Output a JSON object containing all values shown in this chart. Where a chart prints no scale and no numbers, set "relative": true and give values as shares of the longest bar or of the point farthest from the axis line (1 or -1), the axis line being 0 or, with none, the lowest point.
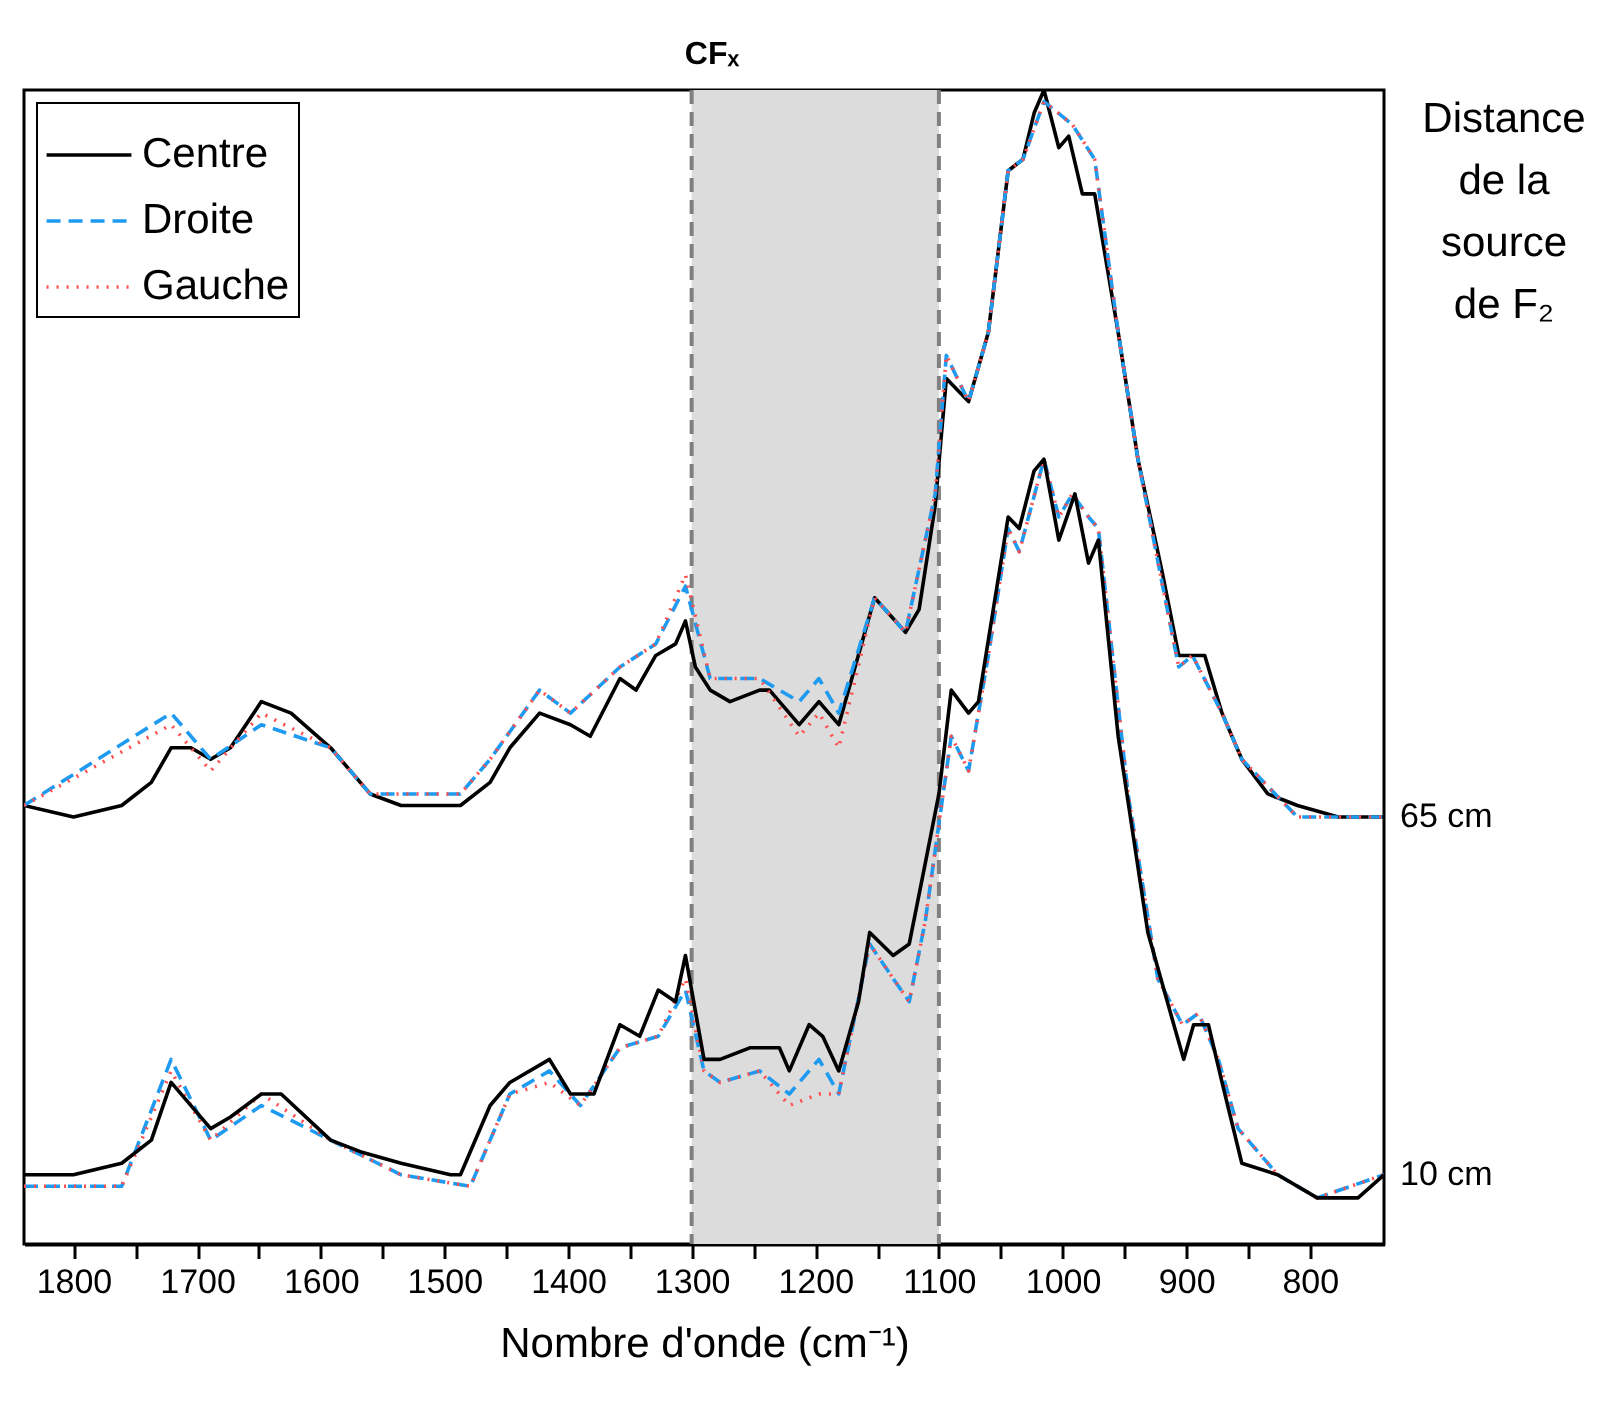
{
  "chart_data": {
    "type": "line",
    "title": "CFₓ",
    "xlabel": "Nombre d'onde (cm⁻¹)",
    "relative": true,
    "xlim": [
      1840,
      740
    ],
    "xticks": [
      1800,
      {
        "value": 1750,
        "label": null
      },
      1700,
      {
        "value": 1650,
        "label": null
      },
      1600,
      {
        "value": 1550,
        "label": null
      },
      1500,
      {
        "value": 1450,
        "label": null
      },
      1400,
      {
        "value": 1350,
        "label": null
      },
      1300,
      {
        "value": 1250,
        "label": null
      },
      1200,
      {
        "value": 1150,
        "label": null
      },
      1100,
      {
        "value": 1050,
        "label": null
      },
      1000,
      {
        "value": 950,
        "label": null
      },
      900,
      {
        "value": 850,
        "label": null
      },
      800
    ],
    "legend": "top left",
    "bands": [
      {
        "axis": "x",
        "from": 1300,
        "to": 1100,
        "color": "#dcdcdc"
      }
    ],
    "ref_lines": [
      {
        "axis": "x",
        "value": 1300,
        "color": "#808080",
        "line_style": "dashed"
      },
      {
        "axis": "x",
        "value": 1100,
        "color": "#808080",
        "line_style": "dashed"
      }
    ],
    "annotations": [
      "Distance de la source de F₂",
      {
        "text": "65 cm",
        "x": 740,
        "y": 0.37
      },
      {
        "text": "10 cm",
        "x": 740,
        "y": 0.06
      }
    ],
    "series": [
      {
        "name": "Centre",
        "color": "#000000",
        "line_style": "solid",
        "x": [
          1840,
          1800,
          1761,
          1737,
          1721,
          1705,
          1689,
          1673,
          1648,
          1624,
          1592,
          1560,
          1535,
          1511,
          1487,
          1463,
          1447,
          1423,
          1398,
          1382,
          1358,
          1345,
          1329,
          1313,
          1305,
          1297,
          1285,
          1269,
          1245,
          1237,
          1213,
          1197,
          1181,
          1152,
          1127,
          1116,
          1103,
          1094,
          1076,
          1060,
          1044,
          1032,
          1023,
          1015,
          1003,
          995,
          984,
          974,
          955,
          939,
          919,
          906,
          895,
          885,
          871,
          855,
          834,
          810,
          777,
          740
        ],
        "values": [
          0.38,
          0.37,
          0.38,
          0.4,
          0.43,
          0.43,
          0.42,
          0.43,
          0.47,
          0.46,
          0.43,
          0.39,
          0.38,
          0.38,
          0.38,
          0.4,
          0.43,
          0.46,
          0.45,
          0.44,
          0.49,
          0.48,
          0.51,
          0.52,
          0.54,
          0.5,
          0.48,
          0.47,
          0.48,
          0.48,
          0.45,
          0.47,
          0.45,
          0.56,
          0.53,
          0.55,
          0.64,
          0.75,
          0.73,
          0.79,
          0.93,
          0.94,
          0.98,
          1.0,
          0.95,
          0.96,
          0.91,
          0.91,
          0.79,
          0.68,
          0.58,
          0.51,
          0.51,
          0.51,
          0.46,
          0.42,
          0.39,
          0.38,
          0.37,
          0.37
        ]
      },
      {
        "name": "Droite",
        "color": "#1e9bf0",
        "line_style": "dashed",
        "x": [
          1840,
          1721,
          1689,
          1648,
          1592,
          1560,
          1487,
          1463,
          1423,
          1398,
          1358,
          1329,
          1305,
          1285,
          1245,
          1213,
          1197,
          1181,
          1152,
          1127,
          1103,
          1094,
          1076,
          1060,
          1044,
          1032,
          1015,
          992,
          974,
          955,
          939,
          919,
          906,
          895,
          871,
          855,
          810,
          740
        ],
        "values": [
          0.38,
          0.46,
          0.42,
          0.45,
          0.43,
          0.39,
          0.39,
          0.42,
          0.48,
          0.46,
          0.5,
          0.52,
          0.57,
          0.49,
          0.49,
          0.47,
          0.49,
          0.46,
          0.56,
          0.53,
          0.65,
          0.77,
          0.73,
          0.79,
          0.93,
          0.94,
          0.99,
          0.97,
          0.94,
          0.79,
          0.68,
          0.57,
          0.5,
          0.51,
          0.46,
          0.42,
          0.37,
          0.37
        ]
      },
      {
        "name": "Gauche",
        "color": "#ff4d4d",
        "line_style": "dotted",
        "x": [
          1840,
          1721,
          1689,
          1648,
          1592,
          1560,
          1487,
          1463,
          1423,
          1398,
          1358,
          1329,
          1305,
          1285,
          1245,
          1213,
          1197,
          1181,
          1152,
          1127,
          1103,
          1094,
          1076,
          1060,
          1044,
          1032,
          1015,
          992,
          974,
          955,
          939,
          919,
          906,
          895,
          871,
          855,
          810,
          740
        ],
        "values": [
          0.38,
          0.45,
          0.41,
          0.46,
          0.43,
          0.39,
          0.39,
          0.42,
          0.48,
          0.46,
          0.5,
          0.52,
          0.58,
          0.49,
          0.49,
          0.44,
          0.46,
          0.43,
          0.56,
          0.53,
          0.65,
          0.77,
          0.73,
          0.79,
          0.93,
          0.94,
          0.99,
          0.97,
          0.94,
          0.79,
          0.68,
          0.57,
          0.5,
          0.51,
          0.46,
          0.42,
          0.37,
          0.37
        ]
      },
      {
        "color": "#1e9bf0",
        "line_style": "dashed",
        "x": [
          1840,
          1761,
          1721,
          1689,
          1648,
          1592,
          1535,
          1479,
          1463,
          1447,
          1415,
          1390,
          1358,
          1327,
          1305,
          1290,
          1277,
          1245,
          1221,
          1197,
          1181,
          1156,
          1137,
          1124,
          1111,
          1090,
          1076,
          1060,
          1044,
          1035,
          1015,
          1003,
          992,
          979,
          971,
          947,
          923,
          903,
          890,
          874,
          858,
          826,
          794,
          740
        ],
        "values": [
          0.05,
          0.05,
          0.16,
          0.09,
          0.12,
          0.09,
          0.06,
          0.05,
          0.09,
          0.13,
          0.15,
          0.12,
          0.17,
          0.18,
          0.22,
          0.15,
          0.14,
          0.15,
          0.13,
          0.16,
          0.13,
          0.26,
          0.23,
          0.21,
          0.28,
          0.44,
          0.41,
          0.51,
          0.62,
          0.6,
          0.68,
          0.63,
          0.65,
          0.63,
          0.62,
          0.39,
          0.23,
          0.19,
          0.2,
          0.16,
          0.1,
          0.06,
          0.04,
          0.06
        ]
      },
      {
        "color": "#ff4d4d",
        "line_style": "dotted",
        "x": [
          1840,
          1761,
          1721,
          1689,
          1648,
          1592,
          1535,
          1479,
          1463,
          1447,
          1415,
          1390,
          1358,
          1327,
          1305,
          1290,
          1277,
          1245,
          1221,
          1197,
          1181,
          1156,
          1137,
          1124,
          1111,
          1090,
          1076,
          1060,
          1044,
          1035,
          1015,
          1003,
          992,
          979,
          971,
          947,
          923,
          903,
          890,
          874,
          858,
          826,
          794,
          740
        ],
        "values": [
          0.05,
          0.05,
          0.15,
          0.09,
          0.13,
          0.09,
          0.06,
          0.05,
          0.09,
          0.13,
          0.14,
          0.12,
          0.17,
          0.18,
          0.23,
          0.15,
          0.14,
          0.15,
          0.12,
          0.13,
          0.13,
          0.26,
          0.23,
          0.21,
          0.28,
          0.44,
          0.41,
          0.51,
          0.62,
          0.6,
          0.68,
          0.63,
          0.65,
          0.63,
          0.62,
          0.39,
          0.23,
          0.19,
          0.2,
          0.16,
          0.1,
          0.06,
          0.04,
          0.06
        ]
      },
      {
        "color": "#000000",
        "line_style": "solid",
        "x": [
          1840,
          1800,
          1761,
          1737,
          1721,
          1689,
          1673,
          1648,
          1632,
          1592,
          1568,
          1535,
          1495,
          1487,
          1463,
          1447,
          1415,
          1398,
          1379,
          1358,
          1342,
          1327,
          1313,
          1305,
          1290,
          1277,
          1253,
          1229,
          1221,
          1205,
          1194,
          1181,
          1165,
          1156,
          1137,
          1124,
          1111,
          1100,
          1090,
          1076,
          1068,
          1056,
          1044,
          1035,
          1023,
          1015,
          1003,
          990,
          979,
          971,
          955,
          931,
          910,
          902,
          894,
          882,
          871,
          855,
          826,
          794,
          761,
          740
        ],
        "values": [
          0.06,
          0.06,
          0.07,
          0.09,
          0.14,
          0.1,
          0.11,
          0.13,
          0.13,
          0.09,
          0.08,
          0.07,
          0.06,
          0.06,
          0.12,
          0.14,
          0.16,
          0.13,
          0.13,
          0.19,
          0.18,
          0.22,
          0.21,
          0.25,
          0.16,
          0.16,
          0.17,
          0.17,
          0.15,
          0.19,
          0.18,
          0.15,
          0.21,
          0.27,
          0.25,
          0.26,
          0.33,
          0.39,
          0.48,
          0.46,
          0.47,
          0.55,
          0.63,
          0.62,
          0.67,
          0.68,
          0.61,
          0.65,
          0.59,
          0.61,
          0.44,
          0.27,
          0.19,
          0.16,
          0.19,
          0.19,
          0.14,
          0.07,
          0.06,
          0.04,
          0.04,
          0.06
        ]
      }
    ]
  }
}
